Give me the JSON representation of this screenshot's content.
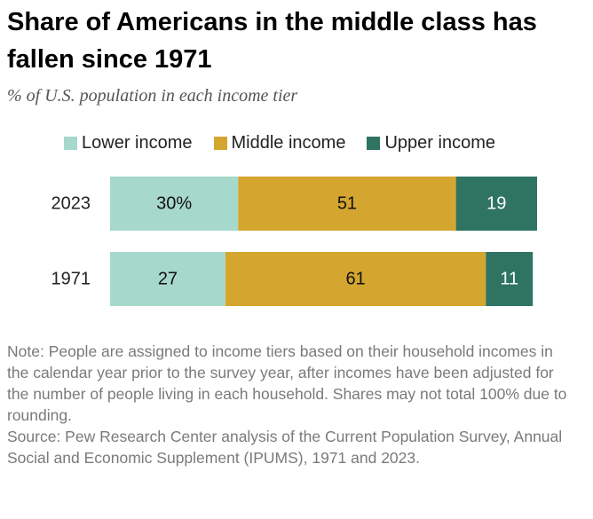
{
  "title": "Share of Americans in the middle class has fallen since 1971",
  "subtitle": "% of U.S. population in each income tier",
  "legend": [
    {
      "label": "Lower income",
      "color": "#a6d8cc"
    },
    {
      "label": "Middle income",
      "color": "#d4a62f"
    },
    {
      "label": "Upper income",
      "color": "#2f7463"
    }
  ],
  "chart_data": {
    "type": "bar",
    "orientation": "horizontal",
    "stacked": true,
    "categories": [
      "2023",
      "1971"
    ],
    "series": [
      {
        "name": "Lower income",
        "values": [
          30,
          27
        ],
        "labels": [
          "30%",
          "27"
        ],
        "color": "#a6d8cc",
        "label_color": "#111111"
      },
      {
        "name": "Middle income",
        "values": [
          51,
          61
        ],
        "labels": [
          "51",
          "61"
        ],
        "color": "#d4a62f",
        "label_color": "#111111"
      },
      {
        "name": "Upper income",
        "values": [
          19,
          11
        ],
        "labels": [
          "19",
          "11"
        ],
        "color": "#2f7463",
        "label_color": "#ffffff"
      }
    ],
    "xlim": [
      0,
      100
    ],
    "title": "Share of Americans in the middle class has fallen since 1971",
    "xlabel": "",
    "ylabel": ""
  },
  "note": "Note: People are assigned to income tiers based on their household incomes in the calendar year prior to the survey year, after incomes have been adjusted for the number of people living in each household. Shares may not total 100% due to rounding.",
  "source": "Source: Pew Research Center analysis of the Current Population Survey, Annual Social and Economic Supplement (IPUMS), 1971 and 2023."
}
